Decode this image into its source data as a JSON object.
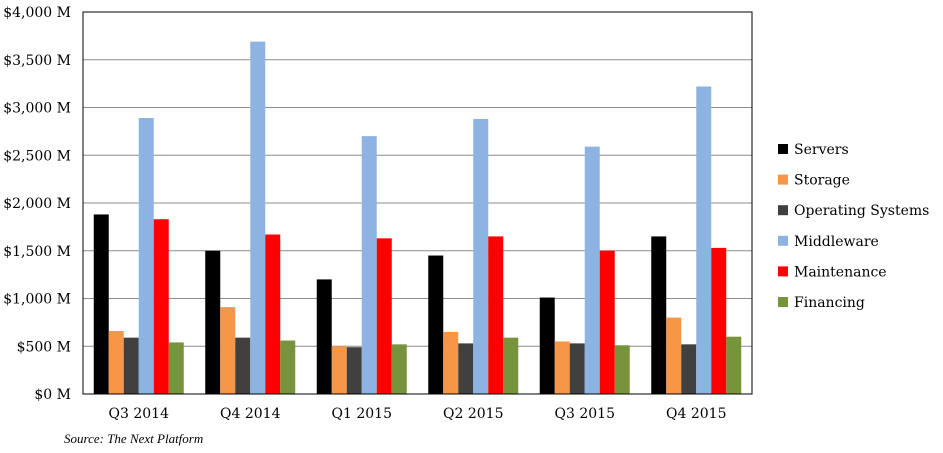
{
  "chart_data": {
    "type": "bar",
    "categories": [
      "Q3 2014",
      "Q4 2014",
      "Q1 2015",
      "Q2 2015",
      "Q3 2015",
      "Q4 2015"
    ],
    "series": [
      {
        "name": "Servers",
        "color": "#000000",
        "values": [
          1880,
          1500,
          1200,
          1450,
          1010,
          1650
        ]
      },
      {
        "name": "Storage",
        "color": "#f79646",
        "values": [
          660,
          910,
          500,
          650,
          550,
          800
        ]
      },
      {
        "name": "Operating Systems",
        "color": "#404040",
        "values": [
          590,
          590,
          490,
          530,
          530,
          520
        ]
      },
      {
        "name": "Middleware",
        "color": "#8db3e2",
        "values": [
          2890,
          3690,
          2700,
          2880,
          2590,
          3220
        ]
      },
      {
        "name": "Maintenance",
        "color": "#ff0000",
        "values": [
          1830,
          1670,
          1630,
          1650,
          1500,
          1530
        ]
      },
      {
        "name": "Financing",
        "color": "#77933c",
        "values": [
          540,
          560,
          520,
          590,
          510,
          600
        ]
      }
    ],
    "y_ticks": [
      "$0 M",
      "$500 M",
      "$1,000 M",
      "$1,500 M",
      "$2,000 M",
      "$2,500 M",
      "$3,000 M",
      "$3,500 M",
      "$4,000 M"
    ],
    "ylim": [
      0,
      4000
    ],
    "grid": true,
    "legend_position": "right"
  },
  "source_note": "Source: The  Next Platform"
}
